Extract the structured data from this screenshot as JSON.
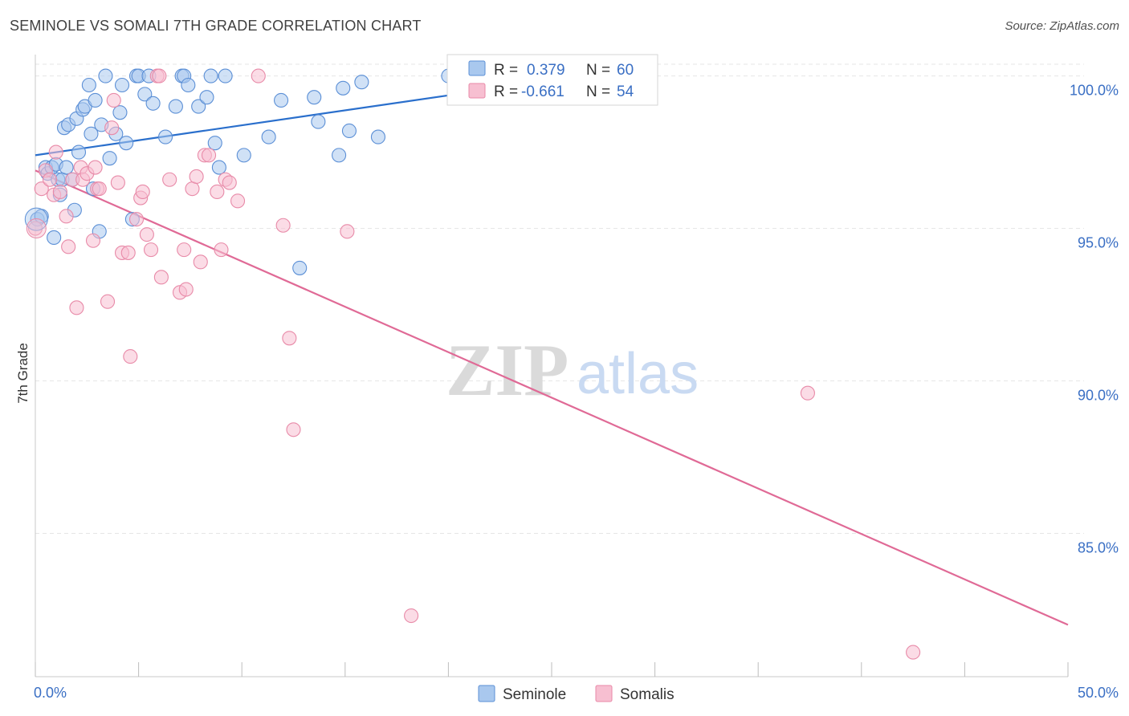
{
  "title": "SEMINOLE VS SOMALI 7TH GRADE CORRELATION CHART",
  "source": "Source: ZipAtlas.com",
  "watermark": {
    "zip": "ZIP",
    "atlas": "atlas"
  },
  "colors": {
    "seminole_fill": "#a9c8ee",
    "seminole_stroke": "#5b8fd6",
    "seminole_line": "#2a6fcc",
    "somali_fill": "#f7bfd1",
    "somali_stroke": "#e88aa8",
    "somali_line": "#e06a96",
    "tick_text": "#3a6fc4",
    "grid": "#e6e6e6"
  },
  "stats": {
    "r_label": "R =",
    "n_label": "N =",
    "seminole": {
      "r": "0.379",
      "n": "60"
    },
    "somali": {
      "r": "-0.661",
      "n": "54"
    }
  },
  "chart_data": {
    "type": "scatter",
    "title": "SEMINOLE VS SOMALI 7TH GRADE CORRELATION CHART",
    "xlabel": "",
    "ylabel": "7th Grade",
    "xlim": [
      0,
      50
    ],
    "ylim": [
      80.3,
      100.7
    ],
    "x_tick_labels": [
      {
        "value": 0,
        "label": "0.0%"
      },
      {
        "value": 50,
        "label": "50.0%"
      }
    ],
    "x_minor_ticks": [
      0,
      5,
      10,
      15,
      20,
      25,
      30,
      35,
      40,
      45,
      50
    ],
    "y_ticks": [
      {
        "value": 100,
        "label": "100.0%"
      },
      {
        "value": 95,
        "label": "95.0%"
      },
      {
        "value": 90,
        "label": "90.0%"
      },
      {
        "value": 85,
        "label": "85.0%"
      }
    ],
    "legend": [
      "Seminole",
      "Somalis"
    ],
    "series": [
      {
        "name": "Seminole",
        "trend": {
          "x": [
            0.0,
            26.5
          ],
          "y": [
            97.4,
            100.0
          ]
        },
        "points": [
          [
            0.1,
            95.3
          ],
          [
            0.3,
            95.4
          ],
          [
            0.5,
            97.0
          ],
          [
            0.6,
            96.8
          ],
          [
            0.8,
            97.0
          ],
          [
            0.9,
            94.7
          ],
          [
            1.0,
            97.1
          ],
          [
            1.2,
            96.1
          ],
          [
            1.1,
            96.6
          ],
          [
            1.3,
            96.6
          ],
          [
            1.5,
            97.0
          ],
          [
            1.4,
            98.3
          ],
          [
            1.6,
            98.4
          ],
          [
            1.8,
            96.6
          ],
          [
            1.9,
            95.6
          ],
          [
            2.1,
            97.5
          ],
          [
            2.0,
            98.6
          ],
          [
            2.3,
            98.9
          ],
          [
            2.4,
            99.0
          ],
          [
            2.6,
            99.7
          ],
          [
            2.7,
            98.1
          ],
          [
            2.8,
            96.3
          ],
          [
            2.9,
            99.2
          ],
          [
            3.1,
            94.9
          ],
          [
            3.2,
            98.4
          ],
          [
            3.4,
            100.0
          ],
          [
            3.6,
            97.3
          ],
          [
            3.9,
            98.1
          ],
          [
            4.1,
            98.8
          ],
          [
            4.2,
            99.7
          ],
          [
            4.4,
            97.8
          ],
          [
            4.7,
            95.3
          ],
          [
            4.9,
            100.0
          ],
          [
            5.0,
            100.0
          ],
          [
            5.3,
            99.4
          ],
          [
            5.5,
            100.0
          ],
          [
            5.7,
            99.1
          ],
          [
            6.3,
            98.0
          ],
          [
            6.8,
            99.0
          ],
          [
            7.1,
            100.0
          ],
          [
            7.2,
            100.0
          ],
          [
            7.4,
            99.7
          ],
          [
            7.9,
            99.0
          ],
          [
            8.3,
            99.3
          ],
          [
            8.5,
            100.0
          ],
          [
            8.7,
            97.8
          ],
          [
            8.9,
            97.0
          ],
          [
            9.2,
            100.0
          ],
          [
            10.1,
            97.4
          ],
          [
            11.3,
            98.0
          ],
          [
            11.9,
            99.2
          ],
          [
            12.8,
            93.7
          ],
          [
            13.5,
            99.3
          ],
          [
            13.7,
            98.5
          ],
          [
            14.7,
            97.4
          ],
          [
            14.9,
            99.6
          ],
          [
            15.2,
            98.2
          ],
          [
            15.8,
            99.8
          ],
          [
            16.6,
            98.0
          ],
          [
            20.0,
            100.0
          ]
        ]
      },
      {
        "name": "Somalis",
        "trend": {
          "x": [
            0.0,
            50.0
          ],
          "y": [
            96.9,
            82.0
          ]
        },
        "points": [
          [
            0.0,
            95.0
          ],
          [
            0.3,
            96.3
          ],
          [
            0.5,
            96.9
          ],
          [
            0.7,
            96.6
          ],
          [
            0.9,
            96.1
          ],
          [
            1.0,
            97.5
          ],
          [
            1.2,
            96.2
          ],
          [
            1.5,
            95.4
          ],
          [
            1.6,
            94.4
          ],
          [
            1.8,
            96.6
          ],
          [
            2.0,
            92.4
          ],
          [
            2.2,
            97.0
          ],
          [
            2.3,
            96.6
          ],
          [
            2.5,
            96.8
          ],
          [
            2.8,
            94.6
          ],
          [
            2.9,
            97.0
          ],
          [
            3.0,
            96.3
          ],
          [
            3.1,
            96.3
          ],
          [
            3.5,
            92.6
          ],
          [
            3.7,
            98.3
          ],
          [
            3.8,
            99.2
          ],
          [
            4.0,
            96.5
          ],
          [
            4.2,
            94.2
          ],
          [
            4.5,
            94.2
          ],
          [
            4.6,
            90.8
          ],
          [
            4.9,
            95.3
          ],
          [
            5.1,
            96.0
          ],
          [
            5.2,
            96.2
          ],
          [
            5.4,
            94.8
          ],
          [
            5.6,
            94.3
          ],
          [
            5.9,
            100.0
          ],
          [
            6.0,
            100.0
          ],
          [
            6.1,
            93.4
          ],
          [
            6.5,
            96.6
          ],
          [
            7.0,
            92.9
          ],
          [
            7.2,
            94.3
          ],
          [
            7.3,
            93.0
          ],
          [
            7.6,
            96.3
          ],
          [
            7.8,
            96.7
          ],
          [
            8.0,
            93.9
          ],
          [
            8.2,
            97.4
          ],
          [
            8.4,
            97.4
          ],
          [
            8.8,
            96.2
          ],
          [
            9.0,
            94.3
          ],
          [
            9.2,
            96.6
          ],
          [
            9.4,
            96.5
          ],
          [
            9.8,
            95.9
          ],
          [
            10.8,
            100.0
          ],
          [
            12.0,
            95.1
          ],
          [
            12.3,
            91.4
          ],
          [
            12.5,
            88.4
          ],
          [
            15.1,
            94.9
          ],
          [
            18.2,
            82.3
          ],
          [
            37.4,
            89.6
          ]
        ]
      }
    ],
    "extra_points_somalis": [
      [
        42.5,
        81.1
      ]
    ]
  }
}
